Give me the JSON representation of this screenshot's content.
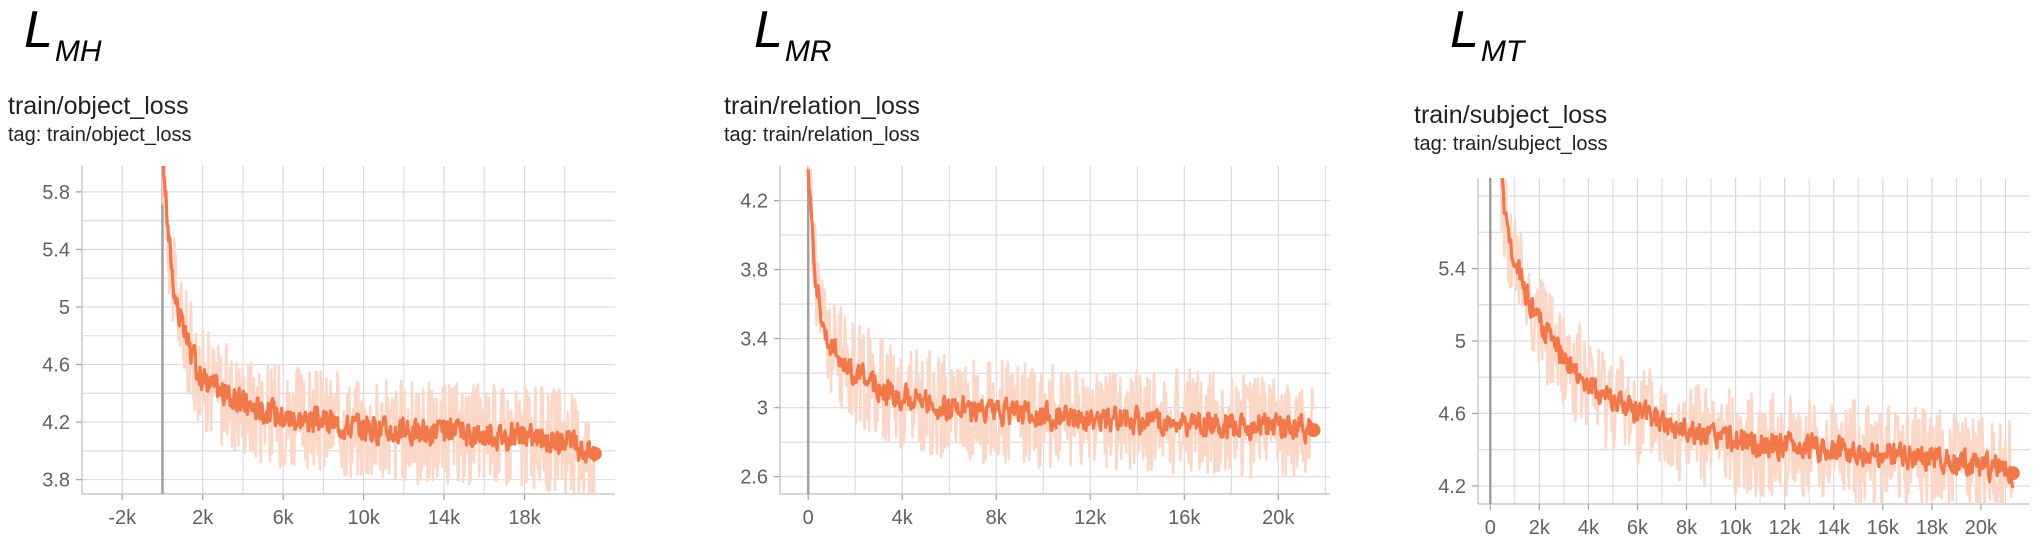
{
  "colors": {
    "line": "#f0784a",
    "raw": "#fbd7c8",
    "grid": "#d8d8d8",
    "zero": "#a0a0a0"
  },
  "charts": [
    {
      "symbol": "L",
      "symbol_sub": "MH",
      "title": "train/object_loss",
      "tag": "tag: train/object_loss"
    },
    {
      "symbol": "L",
      "symbol_sub": "MR",
      "title": "train/relation_loss",
      "tag": "tag: train/relation_loss"
    },
    {
      "symbol": "L",
      "symbol_sub": "MT",
      "title": "train/subject_loss",
      "tag": "tag: train/subject_loss"
    }
  ],
  "chart_data": [
    {
      "type": "line",
      "xlim": [
        -4000,
        22500
      ],
      "ylim": [
        3.7,
        5.98
      ],
      "x_ticks": [
        -2000,
        2000,
        6000,
        10000,
        14000,
        18000
      ],
      "x_tick_labels": [
        "-2k",
        "2k",
        "6k",
        "10k",
        "14k",
        "18k"
      ],
      "y_ticks": [
        3.8,
        4.2,
        4.6,
        5,
        5.4,
        5.8
      ],
      "y_tick_labels": [
        "3.8",
        "4.2",
        "4.6",
        "5",
        "5.4",
        "5.8"
      ],
      "grid": true,
      "legend": "none",
      "series": [
        {
          "x": [
            0,
            300,
            600,
            1000,
            1500,
            2000,
            3000,
            4000,
            5000,
            6000,
            8000,
            10000,
            12000,
            14000,
            16000,
            18000,
            20000,
            21500
          ],
          "y": [
            6.1,
            5.5,
            5.1,
            4.85,
            4.65,
            4.5,
            4.4,
            4.33,
            4.28,
            4.24,
            4.2,
            4.16,
            4.13,
            4.12,
            4.12,
            4.1,
            4.07,
            3.98
          ]
        }
      ]
    },
    {
      "type": "line",
      "xlim": [
        -1200,
        22200
      ],
      "ylim": [
        2.5,
        4.4
      ],
      "x_ticks": [
        0,
        4000,
        8000,
        12000,
        16000,
        20000
      ],
      "x_tick_labels": [
        "0",
        "4k",
        "8k",
        "12k",
        "16k",
        "20k"
      ],
      "y_ticks": [
        2.6,
        3,
        3.4,
        3.8,
        4.2
      ],
      "y_tick_labels": [
        "2.6",
        "3",
        "3.4",
        "3.8",
        "4.2"
      ],
      "grid": true,
      "legend": "none",
      "series": [
        {
          "x": [
            0,
            300,
            600,
            1000,
            1500,
            2000,
            3000,
            4000,
            6000,
            8000,
            10000,
            12000,
            14000,
            16000,
            18000,
            20000,
            21500
          ],
          "y": [
            4.4,
            3.8,
            3.5,
            3.35,
            3.26,
            3.2,
            3.12,
            3.06,
            3.0,
            2.97,
            2.95,
            2.94,
            2.93,
            2.92,
            2.9,
            2.89,
            2.87
          ]
        }
      ]
    },
    {
      "type": "line",
      "xlim": [
        -500,
        22000
      ],
      "ylim": [
        4.1,
        5.9
      ],
      "x_ticks": [
        0,
        2000,
        4000,
        6000,
        8000,
        10000,
        12000,
        14000,
        16000,
        18000,
        20000
      ],
      "x_tick_labels": [
        "0",
        "2k",
        "4k",
        "6k",
        "8k",
        "10k",
        "12k",
        "14k",
        "16k",
        "18k",
        "20k"
      ],
      "y_ticks": [
        4.2,
        4.6,
        5,
        5.4
      ],
      "y_tick_labels": [
        "4.2",
        "4.6",
        "5",
        "5.4"
      ],
      "grid": true,
      "legend": "none",
      "series": [
        {
          "x": [
            400,
            700,
            1000,
            1500,
            2000,
            3000,
            4000,
            5000,
            6000,
            8000,
            10000,
            12000,
            14000,
            16000,
            18000,
            20000,
            21300
          ],
          "y": [
            5.95,
            5.6,
            5.42,
            5.25,
            5.1,
            4.9,
            4.75,
            4.68,
            4.6,
            4.5,
            4.44,
            4.42,
            4.4,
            4.37,
            4.35,
            4.32,
            4.27
          ]
        }
      ]
    }
  ]
}
